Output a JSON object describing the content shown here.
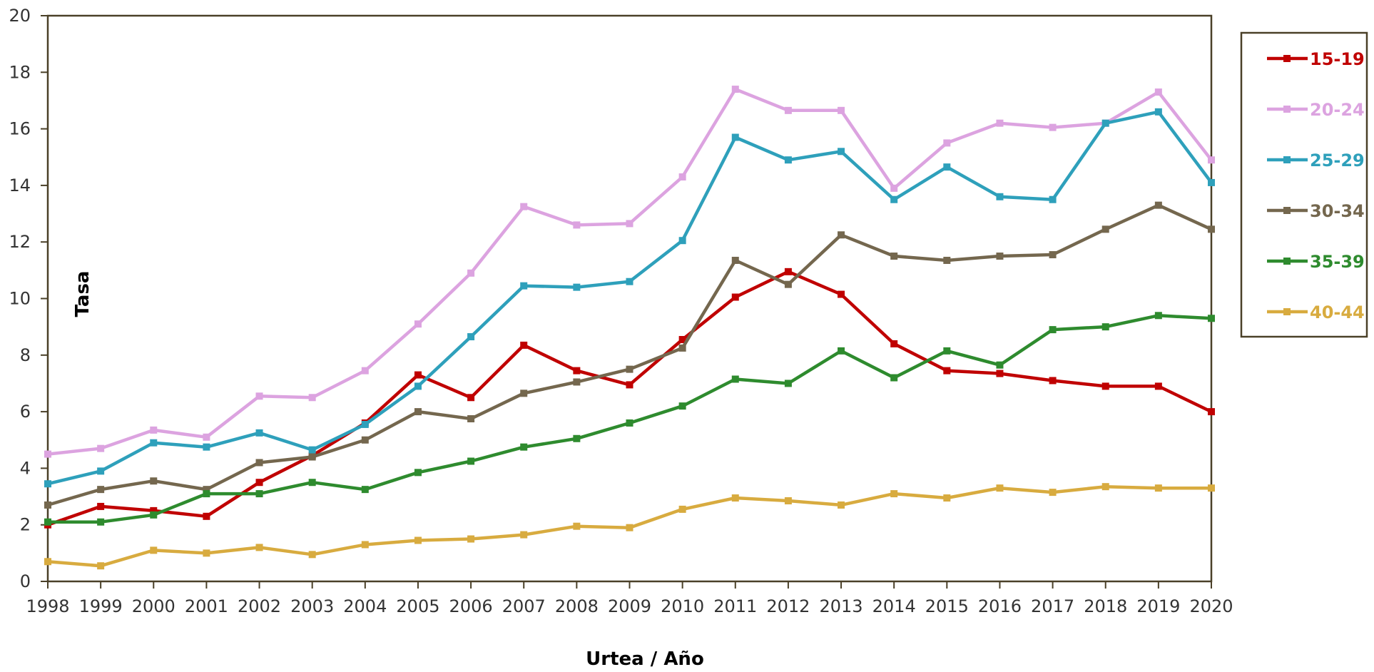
{
  "chart_data": {
    "type": "line",
    "xlabel": "Urtea / Año",
    "ylabel": "Tasa",
    "ylim": [
      0,
      20
    ],
    "yticks": [
      0,
      2,
      4,
      6,
      8,
      10,
      12,
      14,
      16,
      18,
      20
    ],
    "grid": false,
    "legend_position": "right",
    "x": [
      1998,
      1999,
      2000,
      2001,
      2002,
      2003,
      2004,
      2005,
      2006,
      2007,
      2008,
      2009,
      2010,
      2011,
      2012,
      2013,
      2014,
      2015,
      2016,
      2017,
      2018,
      2019,
      2020
    ],
    "series": [
      {
        "name": "15-19",
        "color": "#c00000",
        "values": [
          2.0,
          2.65,
          2.5,
          2.3,
          3.5,
          4.45,
          5.6,
          7.3,
          6.5,
          8.35,
          7.45,
          6.95,
          8.55,
          10.05,
          10.95,
          10.15,
          8.4,
          7.45,
          7.35,
          7.1,
          6.9,
          6.9,
          6.0
        ]
      },
      {
        "name": "20-24",
        "color": "#dca3e0",
        "values": [
          4.5,
          4.7,
          5.35,
          5.1,
          6.55,
          6.5,
          7.45,
          9.1,
          10.9,
          13.25,
          12.6,
          12.65,
          14.3,
          17.4,
          16.65,
          16.65,
          13.9,
          15.5,
          16.2,
          16.05,
          16.2,
          17.3,
          14.9
        ]
      },
      {
        "name": "25-29",
        "color": "#2ea0bb",
        "values": [
          3.45,
          3.9,
          4.9,
          4.75,
          5.25,
          4.65,
          5.55,
          6.9,
          8.65,
          10.45,
          10.4,
          10.6,
          12.05,
          15.7,
          14.9,
          15.2,
          13.5,
          14.65,
          13.6,
          13.5,
          16.2,
          16.6,
          14.1
        ]
      },
      {
        "name": "30-34",
        "color": "#74674e",
        "values": [
          2.7,
          3.25,
          3.55,
          3.25,
          4.2,
          4.4,
          5.0,
          6.0,
          5.75,
          6.65,
          7.05,
          7.5,
          8.25,
          11.35,
          10.5,
          12.25,
          11.5,
          11.35,
          11.5,
          11.55,
          12.45,
          13.3,
          12.45
        ]
      },
      {
        "name": "35-39",
        "color": "#2e8b2e",
        "values": [
          2.1,
          2.1,
          2.35,
          3.1,
          3.1,
          3.5,
          3.25,
          3.85,
          4.25,
          4.75,
          5.05,
          5.6,
          6.2,
          7.15,
          7.0,
          8.15,
          7.2,
          8.15,
          7.65,
          8.9,
          9.0,
          9.4,
          9.3
        ]
      },
      {
        "name": "40-44",
        "color": "#d8ab3f",
        "values": [
          0.7,
          0.55,
          1.1,
          1.0,
          1.2,
          0.95,
          1.3,
          1.45,
          1.5,
          1.65,
          1.95,
          1.9,
          2.55,
          2.95,
          2.85,
          2.7,
          3.1,
          2.95,
          3.3,
          3.15,
          3.35,
          3.3,
          3.3
        ]
      }
    ]
  },
  "colors": {
    "axis": "#4a4028",
    "legend_border": "#4a4028"
  }
}
